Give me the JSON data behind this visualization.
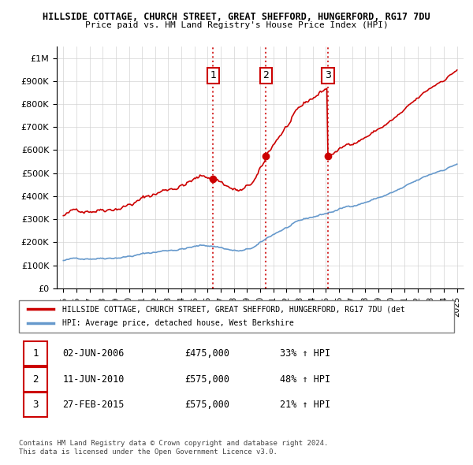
{
  "title1": "HILLSIDE COTTAGE, CHURCH STREET, GREAT SHEFFORD, HUNGERFORD, RG17 7DU",
  "title2": "Price paid vs. HM Land Registry's House Price Index (HPI)",
  "ylabel": "",
  "ylim": [
    0,
    1050000
  ],
  "yticks": [
    0,
    100000,
    200000,
    300000,
    400000,
    500000,
    600000,
    700000,
    800000,
    900000,
    1000000
  ],
  "ytick_labels": [
    "£0",
    "£100K",
    "£200K",
    "£300K",
    "£400K",
    "£500K",
    "£600K",
    "£700K",
    "£800K",
    "£900K",
    "£1M"
  ],
  "sales": [
    {
      "date_num": 2006.42,
      "price": 475000,
      "label": "1"
    },
    {
      "date_num": 2010.44,
      "price": 575000,
      "label": "2"
    },
    {
      "date_num": 2015.16,
      "price": 575000,
      "label": "3"
    }
  ],
  "vline_color": "#cc0000",
  "vline_style": ":",
  "sale_marker_color": "#cc0000",
  "hpi_line_color": "#6699cc",
  "property_line_color": "#cc0000",
  "legend_property": "HILLSIDE COTTAGE, CHURCH STREET, GREAT SHEFFORD, HUNGERFORD, RG17 7DU (det",
  "legend_hpi": "HPI: Average price, detached house, West Berkshire",
  "table_entries": [
    {
      "num": "1",
      "date": "02-JUN-2006",
      "price": "£475,000",
      "change": "33% ↑ HPI"
    },
    {
      "num": "2",
      "date": "11-JUN-2010",
      "price": "£575,000",
      "change": "48% ↑ HPI"
    },
    {
      "num": "3",
      "date": "27-FEB-2015",
      "price": "£575,000",
      "change": "21% ↑ HPI"
    }
  ],
  "footnote1": "Contains HM Land Registry data © Crown copyright and database right 2024.",
  "footnote2": "This data is licensed under the Open Government Licence v3.0.",
  "xlim_start": 1994.5,
  "xlim_end": 2025.5,
  "xticks": [
    1995,
    1996,
    1997,
    1998,
    1999,
    2000,
    2001,
    2002,
    2003,
    2004,
    2005,
    2006,
    2007,
    2008,
    2009,
    2010,
    2011,
    2012,
    2013,
    2014,
    2015,
    2016,
    2017,
    2018,
    2019,
    2020,
    2021,
    2022,
    2023,
    2024,
    2025
  ]
}
